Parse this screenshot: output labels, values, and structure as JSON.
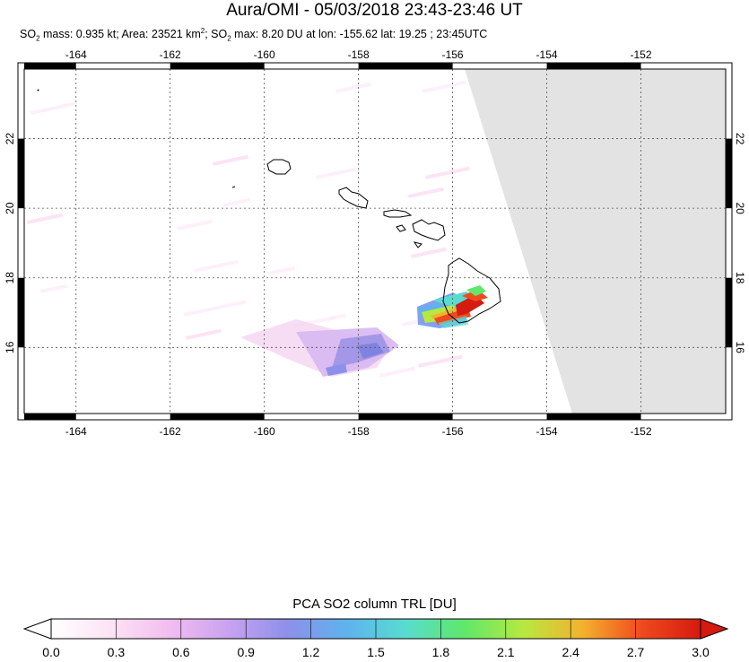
{
  "header": {
    "title": "Aura/OMI - 05/03/2018 23:43-23:46 UT",
    "subtitle": {
      "mass_label": "SO",
      "mass_sub": "2",
      "mass_text": " mass: 0.935 kt; Area: 23521 km",
      "area_sup": "2",
      "sep": "; SO",
      "max_sub": "2",
      "max_text": " max: 8.20 DU at lon: -155.62 lat: 19.25 ; 23:45UTC"
    }
  },
  "map": {
    "lon_range": [
      -165.1,
      -150.2
    ],
    "lat_range": [
      14.1,
      24.0
    ],
    "lon_ticks": [
      "-164",
      "-162",
      "-160",
      "-158",
      "-156",
      "-154",
      "-152"
    ],
    "lon_values": [
      -164,
      -162,
      -160,
      -158,
      -156,
      -154,
      -152
    ],
    "lat_ticks": [
      "16",
      "18",
      "20",
      "22"
    ],
    "lat_values": [
      16,
      18,
      20,
      22
    ],
    "no_data_color": "#e3e3e3",
    "coast_color": "#000000"
  },
  "colorbar": {
    "title": "PCA SO2 column TRL [DU]",
    "tick_labels": [
      "0.0",
      "0.3",
      "0.6",
      "0.9",
      "1.2",
      "1.5",
      "1.8",
      "2.1",
      "2.4",
      "2.7",
      "3.0"
    ],
    "colors": [
      "#ffffff",
      "#fde3f5",
      "#f2bdf0",
      "#c9a2f0",
      "#8d90ea",
      "#5fb2ee",
      "#58dcd0",
      "#5fe86a",
      "#b7e840",
      "#f3b22e",
      "#ef4a1e",
      "#d51a10"
    ]
  }
}
